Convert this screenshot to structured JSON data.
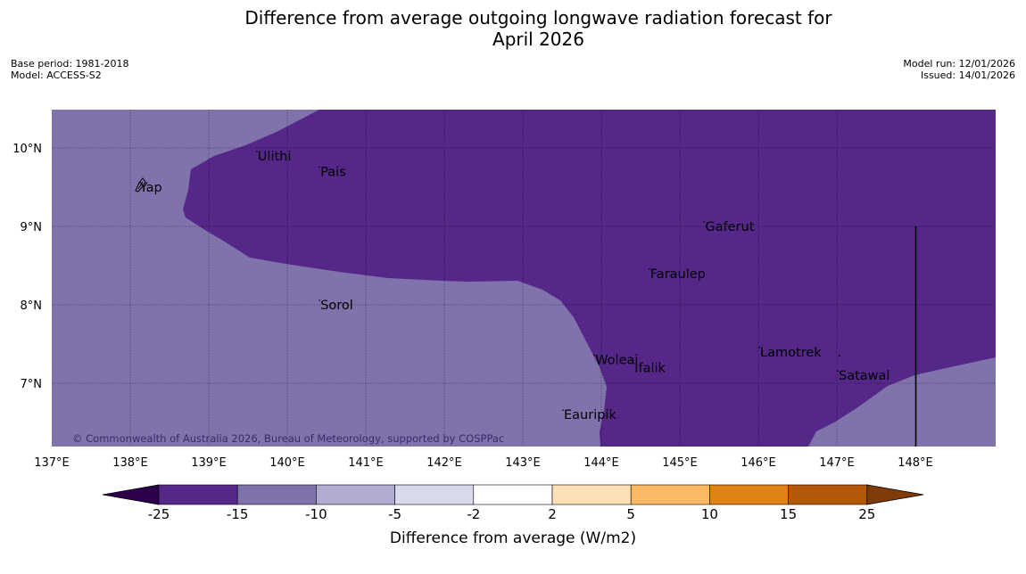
{
  "title_line1": "Difference from average outgoing longwave radiation forecast for",
  "title_line2": "April 2026",
  "meta": {
    "base_period": "Base period: 1981-2018",
    "model": "Model: ACCESS-S2",
    "model_run": "Model run: 12/01/2026",
    "issued": "Issued: 14/01/2026"
  },
  "axes": {
    "lon_labels": [
      "137°E",
      "138°E",
      "139°E",
      "140°E",
      "141°E",
      "142°E",
      "143°E",
      "144°E",
      "145°E",
      "146°E",
      "147°E",
      "148°E"
    ],
    "lat_labels": [
      "10°N",
      "9°N",
      "8°N",
      "7°N"
    ]
  },
  "places": [
    {
      "name": "Yap",
      "lon": 138.1,
      "lat": 9.5
    },
    {
      "name": "Ulithi",
      "lon": 139.6,
      "lat": 9.9
    },
    {
      "name": "Pais",
      "lon": 140.4,
      "lat": 9.7
    },
    {
      "name": "Gaferut",
      "lon": 145.3,
      "lat": 9.0
    },
    {
      "name": "Faraulep",
      "lon": 144.6,
      "lat": 8.4
    },
    {
      "name": "Sorol",
      "lon": 140.4,
      "lat": 8.0
    },
    {
      "name": "Woleai",
      "lon": 143.9,
      "lat": 7.3
    },
    {
      "name": "Ifalik",
      "lon": 144.4,
      "lat": 7.2
    },
    {
      "name": "Lamotrek",
      "lon": 146.0,
      "lat": 7.4
    },
    {
      "name": "Satawal",
      "lon": 147.0,
      "lat": 7.1
    },
    {
      "name": "Eauripik",
      "lon": 143.5,
      "lat": 6.6
    }
  ],
  "copyright": "© Commonwealth of Australia 2026, Bureau of Meteorology, supported by COSPPac",
  "colorbar": {
    "title": "Difference from average (W/m2)",
    "labels": [
      "-25",
      "-15",
      "-10",
      "-5",
      "-2",
      "2",
      "5",
      "10",
      "15",
      "25"
    ],
    "colors": [
      "#542788",
      "#8073ac",
      "#b2abd2",
      "#d8daeb",
      "#ffffff",
      "#fee0b6",
      "#fdb863",
      "#e08214",
      "#b35806"
    ],
    "under_color": "#2d004b",
    "over_color": "#7f3b08"
  },
  "map_colors": {
    "below_15": "#542788",
    "below_10": "#8073ac"
  }
}
